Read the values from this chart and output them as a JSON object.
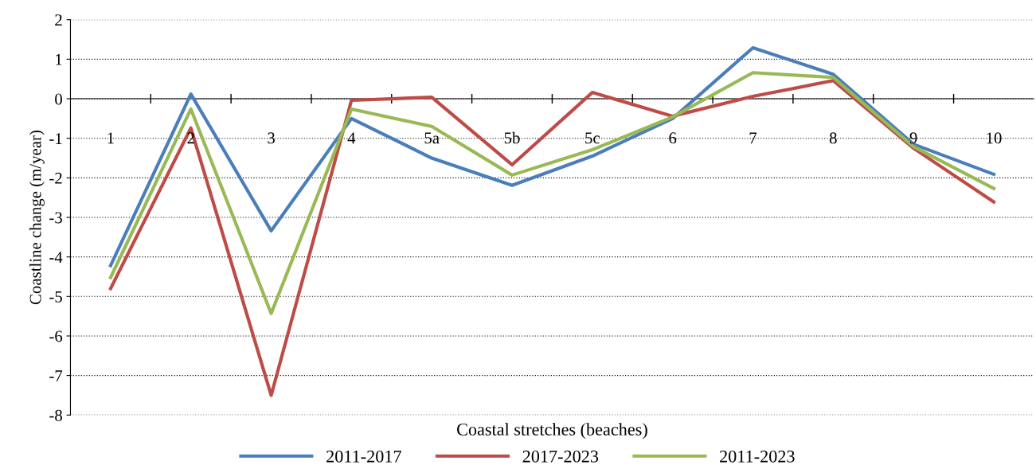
{
  "chart_data": {
    "type": "line",
    "xlabel": "Coastal stretches (beaches)",
    "ylabel": "Coastline change (m/year)",
    "categories": [
      "1",
      "2",
      "3",
      "4",
      "5a",
      "5b",
      "5c",
      "6",
      "7",
      "8",
      "9",
      "10"
    ],
    "series": [
      {
        "name": "2011-2017",
        "color": "#4a7ebb",
        "values": [
          -4.22,
          0.12,
          -3.34,
          -0.5,
          -1.5,
          -2.19,
          -1.45,
          -0.5,
          1.29,
          0.62,
          -1.15,
          -1.91
        ]
      },
      {
        "name": "2017-2023",
        "color": "#be4b48",
        "values": [
          -4.8,
          -0.74,
          -7.5,
          -0.04,
          0.04,
          -1.67,
          0.16,
          -0.44,
          0.06,
          0.46,
          -1.25,
          -2.61
        ]
      },
      {
        "name": "2011-2023",
        "color": "#98b954",
        "values": [
          -4.52,
          -0.26,
          -5.43,
          -0.26,
          -0.7,
          -1.93,
          -1.29,
          -0.46,
          0.66,
          0.54,
          -1.21,
          -2.27
        ]
      }
    ],
    "ylim": [
      -8,
      2
    ],
    "yticks": [
      -8,
      -7,
      -6,
      -5,
      -4,
      -3,
      -2,
      -1,
      0,
      1,
      2
    ],
    "grid": "y",
    "legend": "bottom",
    "marker": "none",
    "line_style": "solid"
  }
}
